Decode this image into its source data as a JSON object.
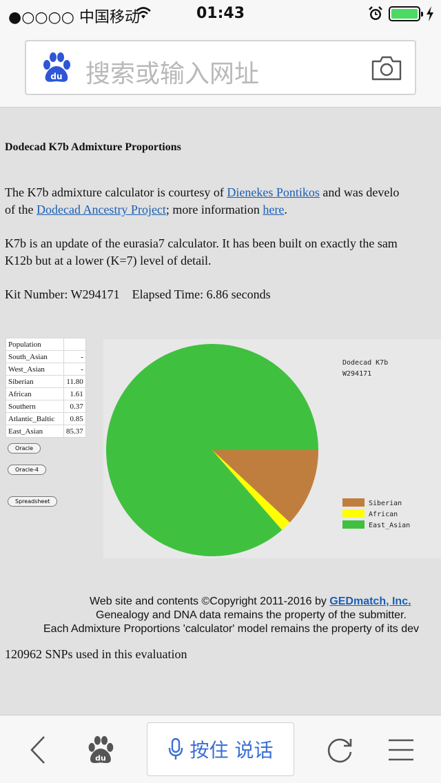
{
  "status_bar": {
    "carrier": "●○○○○ 中国移动",
    "time": "01:43",
    "icons": [
      "wifi-icon",
      "alarm-icon",
      "battery-icon",
      "charging-icon"
    ],
    "battery_color": "#4cd964"
  },
  "address_bar": {
    "placeholder": "搜索或输入网址",
    "logo_text": "du",
    "logo_color": "#2e56d6"
  },
  "page": {
    "title": "Dodecad K7b Admixture Proportions",
    "para1_line1_prefix": "The K7b admixture calculator is courtesy of ",
    "para1_link1": "Dienekes Pontikos",
    "para1_line1_suffix": " and was develo",
    "para1_line2_prefix": "of the ",
    "para1_link2": "Dodecad Ancestry Project",
    "para1_line2_mid": "; more information ",
    "para1_link3": "here",
    "para1_line2_suffix": ".",
    "para2_line1": "K7b is an update of the eurasia7 calculator. It has been built on exactly the sam",
    "para2_line2": "K12b but at a lower (K=7) level of detail.",
    "kit_line": "Kit Number: W294171    Elapsed Time: 6.86 seconds",
    "table_header": "Population",
    "table_rows": [
      {
        "name": "South_Asian",
        "value": "-"
      },
      {
        "name": "West_Asian",
        "value": "-"
      },
      {
        "name": "Siberian",
        "value": "11.80"
      },
      {
        "name": "African",
        "value": "1.61"
      },
      {
        "name": "Southern",
        "value": "0.37"
      },
      {
        "name": "Atlantic_Baltic",
        "value": "0.85"
      },
      {
        "name": "East_Asian",
        "value": "85.37"
      }
    ],
    "buttons": {
      "oracle": "Oracle",
      "oracle4": "Oracle-4",
      "spreadsheet": "Spreadsheet"
    },
    "footer_line1_prefix": "Web site and contents ©Copyright 2011-2016 by ",
    "footer_link": "GEDmatch, Inc.",
    "footer_line2": "Genealogy and DNA data remains the property of the submitter.",
    "footer_line3": "Each Admixture Proportions 'calculator' model remains the property of its dev",
    "snps": "120962 SNPs used in this evaluation"
  },
  "chart_data": {
    "type": "pie",
    "title": "Dodecad K7b",
    "subtitle": "W294171",
    "legend_position": "right",
    "slices": [
      {
        "label": "Siberian",
        "value": 11.8,
        "color": "#c07e3e"
      },
      {
        "label": "African",
        "value": 1.61,
        "color": "#ffff00"
      },
      {
        "label": "East_Asian",
        "value": 85.37,
        "color": "#3fc13f"
      }
    ]
  },
  "toolbar": {
    "voice_label": "按住 说话",
    "accent_color": "#3a6fd4",
    "icons": [
      "back-icon",
      "baidu-paw-icon",
      "microphone-icon",
      "refresh-icon",
      "menu-icon"
    ]
  }
}
